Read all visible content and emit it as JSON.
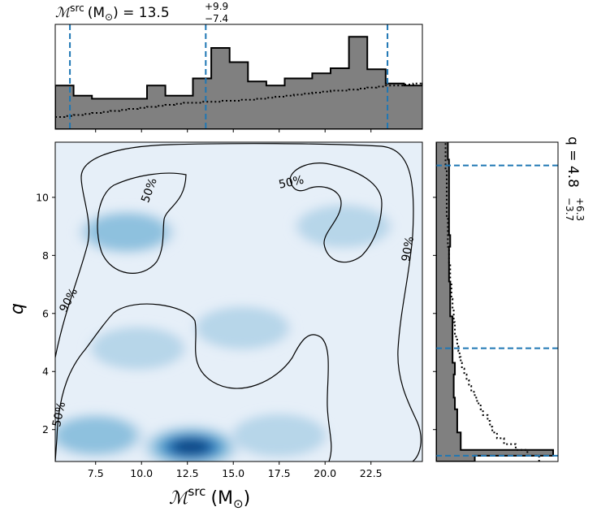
{
  "chart_data": {
    "type": "heatmap",
    "colors": {
      "marginal_fill": "#808080",
      "quantile_line": "#1f77b4",
      "heatmap_low": "#f7fbff",
      "heatmap_high": "#08306b"
    },
    "top_panel": {
      "title_symbol": "ℳ",
      "title_sup": "src",
      "title_unit": "(M",
      "title_sun": "⊙",
      "title_eq": ") = 13.5",
      "title_upper": "+9.9",
      "title_lower": "−7.4",
      "quantiles": [
        6.1,
        13.5,
        23.4
      ],
      "hist_edges_start": 5.3,
      "hist_bin_width": 0.5,
      "hist_solid": [
        0.43,
        0.43,
        0.33,
        0.33,
        0.3,
        0.3,
        0.3,
        0.3,
        0.3,
        0.3,
        0.43,
        0.43,
        0.33,
        0.33,
        0.33,
        0.5,
        0.5,
        0.8,
        0.8,
        0.66,
        0.66,
        0.47,
        0.47,
        0.43,
        0.43,
        0.5,
        0.5,
        0.5,
        0.55,
        0.55,
        0.6,
        0.6,
        0.91,
        0.91,
        0.59,
        0.59,
        0.45,
        0.45,
        0.43,
        0.43,
        0.45,
        0.45,
        0.47,
        0.47,
        0.43,
        0.43,
        0.52,
        0.52,
        0.52,
        0.52,
        0.52,
        0.52,
        0.52,
        0.52,
        0.52,
        0.52,
        0.52,
        0.52,
        0.52,
        0.43,
        0.43,
        0.33,
        0.33,
        0.39,
        0.39,
        0.37,
        0.37,
        0.33,
        0.33,
        0.33,
        0.33,
        0.29,
        0.29,
        0.29,
        0.29,
        0.3,
        0.3,
        0.3,
        0.3,
        0.27,
        0.27
      ],
      "hist_dotted": [
        0.12,
        0.13,
        0.14,
        0.15,
        0.16,
        0.17,
        0.18,
        0.19,
        0.2,
        0.21,
        0.22,
        0.23,
        0.24,
        0.25,
        0.26,
        0.26,
        0.27,
        0.27,
        0.28,
        0.28,
        0.29,
        0.29,
        0.3,
        0.31,
        0.32,
        0.33,
        0.34,
        0.35,
        0.36,
        0.37,
        0.38,
        0.38,
        0.39,
        0.4,
        0.41,
        0.42,
        0.43,
        0.43,
        0.44,
        0.45,
        0.46,
        0.46,
        0.47,
        0.47,
        0.48,
        0.49,
        0.5,
        0.51,
        0.52,
        0.53,
        0.54,
        0.55,
        0.56,
        0.57,
        0.58,
        0.6,
        0.61,
        0.63,
        0.65,
        0.67,
        0.68,
        0.69,
        0.7,
        0.72,
        0.74,
        0.75,
        0.76,
        0.77,
        0.78,
        0.8,
        0.81,
        0.82,
        0.83,
        0.84,
        0.84,
        0.85,
        0.87,
        0.87,
        0.86,
        0.85,
        0.86
      ]
    },
    "main_panel": {
      "xlabel_symbol": "ℳ",
      "xlabel_sup": "src",
      "xlabel_unit": "(M",
      "xlabel_sun": "⊙",
      "xlabel_close": ")",
      "ylabel": "q",
      "xlim": [
        5.3,
        25.3
      ],
      "ylim": [
        0.9,
        11.9
      ],
      "x_ticks": [
        "7.5",
        "10.0",
        "12.5",
        "15.0",
        "17.5",
        "20.0",
        "22.5"
      ],
      "x_tick_values": [
        7.5,
        10.0,
        12.5,
        15.0,
        17.5,
        20.0,
        22.5
      ],
      "y_ticks": [
        "2",
        "4",
        "6",
        "8",
        "10"
      ],
      "y_tick_values": [
        2,
        4,
        6,
        8,
        10
      ],
      "density_peaks": [
        {
          "x": 12.7,
          "y": 1.4,
          "weight": 1.0
        },
        {
          "x": 9.2,
          "y": 8.8,
          "weight": 0.45
        },
        {
          "x": 7.5,
          "y": 1.8,
          "weight": 0.4
        },
        {
          "x": 17.5,
          "y": 1.8,
          "weight": 0.35
        },
        {
          "x": 9.8,
          "y": 4.8,
          "weight": 0.22
        },
        {
          "x": 21.0,
          "y": 9.0,
          "weight": 0.2
        },
        {
          "x": 15.5,
          "y": 5.5,
          "weight": 0.12
        }
      ],
      "contour_labels": [
        {
          "text": "50%",
          "x": 10.6,
          "y": 10.2,
          "rotate": -70
        },
        {
          "text": "50%",
          "x": 18.2,
          "y": 10.4,
          "rotate": -12
        },
        {
          "text": "50%",
          "x": 5.7,
          "y": 2.5,
          "rotate": -78
        },
        {
          "text": "90%",
          "x": 6.2,
          "y": 6.4,
          "rotate": -62
        },
        {
          "text": "90%",
          "x": 24.7,
          "y": 8.2,
          "rotate": -80
        }
      ]
    },
    "right_panel": {
      "title_prefix": "q = 4.8",
      "title_upper": "+6.3",
      "title_lower": "−3.7",
      "quantiles": [
        1.1,
        4.8,
        11.1
      ],
      "hist_edges_start": 0.9,
      "hist_bin_width": 0.2,
      "hist_solid": [
        0.33,
        1.0,
        0.21,
        0.21,
        0.21,
        0.18,
        0.18,
        0.18,
        0.18,
        0.16,
        0.16,
        0.15,
        0.15,
        0.15,
        0.15,
        0.16,
        0.16,
        0.14,
        0.14,
        0.14,
        0.14,
        0.14,
        0.14,
        0.14,
        0.14,
        0.12,
        0.12,
        0.12,
        0.12,
        0.12,
        0.12,
        0.11,
        0.11,
        0.11,
        0.11,
        0.11,
        0.11,
        0.12,
        0.12,
        0.11,
        0.11,
        0.11,
        0.11,
        0.11,
        0.11,
        0.11,
        0.11,
        0.11,
        0.11,
        0.11,
        0.11,
        0.11,
        0.1,
        0.1,
        0.1,
        0.1,
        0.1,
        0.1,
        0.1,
        0.1,
        0.1,
        0.12,
        0.12,
        0.12,
        0.12,
        0.12,
        0.12,
        0.12,
        0.12,
        0.12,
        0.11,
        0.11,
        0.11,
        0.11,
        0.11,
        0.11,
        0.11,
        0.11,
        0.11,
        0.11,
        0.11,
        0.11,
        0.11,
        0.11,
        0.11,
        0.11,
        0.11,
        0.11,
        0.11,
        0.11,
        0.11,
        0.11,
        0.11,
        0.11,
        0.11,
        0.11,
        0.11,
        0.11,
        0.11,
        0.11,
        0.11,
        0.11,
        0.11,
        0.11,
        0.11,
        0.11,
        0.11,
        0.11,
        0.11,
        0.11,
        0.11,
        0.11,
        0.11,
        0.11,
        0.11,
        0.11,
        0.11,
        0.11,
        0.11,
        0.11,
        0.11,
        0.11,
        0.11,
        0.11,
        0.11,
        0.11,
        0.11,
        0.11,
        0.11,
        0.11,
        0.11,
        0.11,
        0.11,
        0.11,
        0.11,
        0.11
      ],
      "hist_dotted": [
        0.88,
        0.78,
        0.68,
        0.58,
        0.52,
        0.48,
        0.46,
        0.44,
        0.4,
        0.38,
        0.35,
        0.33,
        0.3,
        0.28,
        0.26,
        0.24,
        0.22,
        0.21,
        0.2,
        0.19,
        0.18,
        0.17,
        0.16,
        0.16,
        0.15,
        0.15,
        0.14,
        0.14,
        0.13,
        0.13,
        0.13,
        0.12,
        0.12,
        0.12,
        0.11,
        0.11,
        0.11,
        0.1,
        0.1,
        0.1,
        0.1,
        0.1,
        0.09,
        0.09,
        0.09,
        0.09,
        0.09,
        0.09,
        0.09,
        0.09,
        0.08,
        0.08,
        0.08,
        0.08,
        0.08,
        0.08,
        0.08,
        0.08,
        0.08,
        0.08,
        0.08,
        0.08,
        0.08,
        0.08,
        0.08,
        0.08,
        0.08,
        0.08,
        0.08,
        0.08,
        0.08,
        0.08,
        0.08,
        0.08,
        0.08,
        0.08,
        0.08,
        0.08,
        0.08,
        0.08,
        0.08,
        0.08,
        0.08,
        0.08,
        0.08,
        0.08,
        0.08,
        0.08,
        0.08,
        0.08,
        0.08,
        0.08,
        0.08,
        0.08,
        0.08,
        0.08,
        0.08,
        0.08,
        0.08,
        0.08,
        0.08,
        0.08,
        0.08,
        0.08,
        0.08,
        0.08,
        0.08,
        0.08,
        0.08,
        0.08,
        0.08,
        0.08,
        0.08,
        0.08,
        0.08,
        0.08,
        0.08,
        0.08,
        0.08,
        0.08,
        0.08,
        0.08,
        0.08,
        0.08,
        0.08,
        0.08,
        0.08,
        0.08,
        0.08,
        0.08,
        0.08,
        0.08,
        0.08,
        0.08,
        0.08,
        0.08
      ]
    }
  }
}
